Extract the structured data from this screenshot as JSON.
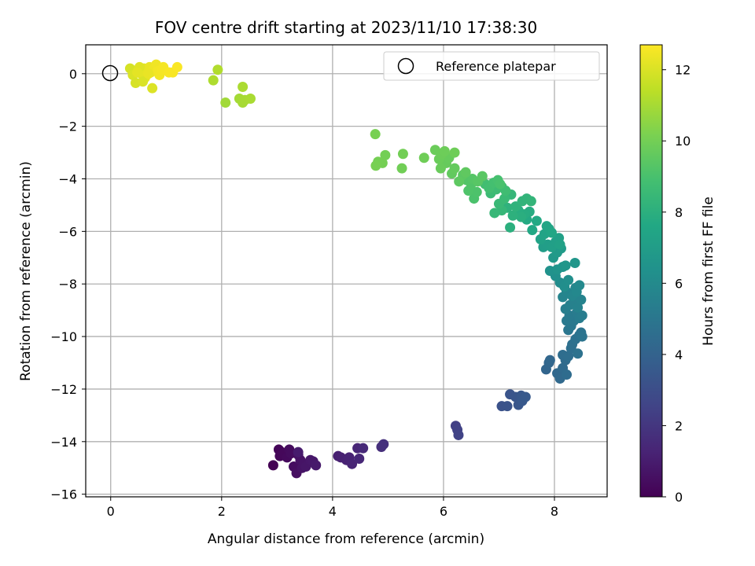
{
  "chart_data": {
    "type": "scatter",
    "title": "FOV centre drift starting at 2023/11/10 17:38:30",
    "xlabel": "Angular distance from reference (arcmin)",
    "ylabel": "Rotation from reference (arcmin)",
    "colorbar_label": "Hours from first FF file",
    "xlim": [
      -0.45,
      8.95
    ],
    "ylim": [
      -16.1,
      1.1
    ],
    "xticks": [
      0,
      2,
      4,
      6,
      8
    ],
    "xtick_labels": [
      "0",
      "2",
      "4",
      "6",
      "8"
    ],
    "yticks": [
      0,
      -2,
      -4,
      -6,
      -8,
      -10,
      -12,
      -14,
      -16
    ],
    "ytick_labels": [
      "0",
      "−2",
      "−4",
      "−6",
      "−8",
      "−10",
      "−12",
      "−14",
      "−16"
    ],
    "colorbar_range": [
      0,
      12.7
    ],
    "colorbar_ticks": [
      0,
      2,
      4,
      6,
      8,
      10,
      12
    ],
    "colorbar_tick_labels": [
      "0",
      "2",
      "4",
      "6",
      "8",
      "10",
      "12"
    ],
    "colormap": "viridis",
    "grid": true,
    "legend": {
      "position": "top-right",
      "entries": [
        "Reference platepar"
      ]
    },
    "reference_point": {
      "x": 0,
      "y": 0,
      "label": "Reference platepar"
    },
    "points": [
      {
        "x": 2.93,
        "y": -14.9,
        "t": 0.0
      },
      {
        "x": 3.03,
        "y": -14.3,
        "t": 0.1
      },
      {
        "x": 3.08,
        "y": -14.4,
        "t": 0.15
      },
      {
        "x": 3.05,
        "y": -14.55,
        "t": 0.2
      },
      {
        "x": 3.12,
        "y": -14.45,
        "t": 0.25
      },
      {
        "x": 3.18,
        "y": -14.6,
        "t": 0.3
      },
      {
        "x": 3.22,
        "y": -14.3,
        "t": 0.35
      },
      {
        "x": 3.25,
        "y": -14.45,
        "t": 0.4
      },
      {
        "x": 3.3,
        "y": -14.95,
        "t": 0.45
      },
      {
        "x": 3.35,
        "y": -15.2,
        "t": 0.5
      },
      {
        "x": 3.38,
        "y": -14.5,
        "t": 0.55
      },
      {
        "x": 3.42,
        "y": -14.7,
        "t": 0.6
      },
      {
        "x": 3.45,
        "y": -15.0,
        "t": 0.65
      },
      {
        "x": 3.48,
        "y": -14.85,
        "t": 0.7
      },
      {
        "x": 3.52,
        "y": -14.95,
        "t": 0.75
      },
      {
        "x": 3.6,
        "y": -14.7,
        "t": 0.8
      },
      {
        "x": 3.65,
        "y": -14.75,
        "t": 0.85
      },
      {
        "x": 3.7,
        "y": -14.9,
        "t": 0.9
      },
      {
        "x": 3.38,
        "y": -14.4,
        "t": 0.95
      },
      {
        "x": 4.1,
        "y": -14.55,
        "t": 1.1
      },
      {
        "x": 4.15,
        "y": -14.6,
        "t": 1.15
      },
      {
        "x": 4.25,
        "y": -14.7,
        "t": 1.2
      },
      {
        "x": 4.3,
        "y": -14.6,
        "t": 1.25
      },
      {
        "x": 4.35,
        "y": -14.85,
        "t": 1.3
      },
      {
        "x": 4.45,
        "y": -14.25,
        "t": 1.35
      },
      {
        "x": 4.48,
        "y": -14.65,
        "t": 1.4
      },
      {
        "x": 4.55,
        "y": -14.25,
        "t": 1.45
      },
      {
        "x": 4.88,
        "y": -14.2,
        "t": 1.7
      },
      {
        "x": 4.92,
        "y": -14.1,
        "t": 1.75
      },
      {
        "x": 6.22,
        "y": -13.4,
        "t": 2.4
      },
      {
        "x": 6.25,
        "y": -13.55,
        "t": 2.45
      },
      {
        "x": 6.27,
        "y": -13.75,
        "t": 2.5
      },
      {
        "x": 7.05,
        "y": -12.65,
        "t": 3.2
      },
      {
        "x": 7.15,
        "y": -12.65,
        "t": 3.25
      },
      {
        "x": 7.2,
        "y": -12.2,
        "t": 3.3
      },
      {
        "x": 7.3,
        "y": -12.3,
        "t": 3.35
      },
      {
        "x": 7.35,
        "y": -12.6,
        "t": 3.4
      },
      {
        "x": 7.4,
        "y": -12.25,
        "t": 3.45
      },
      {
        "x": 7.42,
        "y": -12.45,
        "t": 3.5
      },
      {
        "x": 7.48,
        "y": -12.3,
        "t": 3.55
      },
      {
        "x": 7.85,
        "y": -11.25,
        "t": 4.1
      },
      {
        "x": 7.9,
        "y": -11.0,
        "t": 4.15
      },
      {
        "x": 7.92,
        "y": -10.9,
        "t": 4.2
      },
      {
        "x": 8.05,
        "y": -11.4,
        "t": 4.25
      },
      {
        "x": 8.1,
        "y": -11.6,
        "t": 4.3
      },
      {
        "x": 8.15,
        "y": -11.2,
        "t": 4.35
      },
      {
        "x": 8.2,
        "y": -10.9,
        "t": 4.4
      },
      {
        "x": 8.22,
        "y": -11.45,
        "t": 4.45
      },
      {
        "x": 8.15,
        "y": -10.7,
        "t": 4.5
      },
      {
        "x": 8.25,
        "y": -10.75,
        "t": 4.55
      },
      {
        "x": 8.3,
        "y": -10.45,
        "t": 4.6
      },
      {
        "x": 8.32,
        "y": -10.3,
        "t": 4.65
      },
      {
        "x": 8.38,
        "y": -10.1,
        "t": 4.7
      },
      {
        "x": 8.42,
        "y": -10.65,
        "t": 4.75
      },
      {
        "x": 8.45,
        "y": -9.95,
        "t": 4.8
      },
      {
        "x": 8.48,
        "y": -9.85,
        "t": 4.85
      },
      {
        "x": 8.5,
        "y": -10.0,
        "t": 4.9
      },
      {
        "x": 8.25,
        "y": -9.75,
        "t": 5.0
      },
      {
        "x": 8.3,
        "y": -9.6,
        "t": 5.05
      },
      {
        "x": 8.35,
        "y": -9.4,
        "t": 5.1
      },
      {
        "x": 8.22,
        "y": -9.4,
        "t": 5.15
      },
      {
        "x": 8.27,
        "y": -9.2,
        "t": 5.2
      },
      {
        "x": 8.4,
        "y": -9.1,
        "t": 5.25
      },
      {
        "x": 8.45,
        "y": -9.3,
        "t": 5.3
      },
      {
        "x": 8.5,
        "y": -9.2,
        "t": 5.35
      },
      {
        "x": 8.2,
        "y": -8.95,
        "t": 5.4
      },
      {
        "x": 8.28,
        "y": -8.8,
        "t": 5.5
      },
      {
        "x": 8.35,
        "y": -8.7,
        "t": 5.55
      },
      {
        "x": 8.42,
        "y": -8.9,
        "t": 5.6
      },
      {
        "x": 8.48,
        "y": -8.6,
        "t": 5.65
      },
      {
        "x": 8.15,
        "y": -8.5,
        "t": 5.7
      },
      {
        "x": 8.22,
        "y": -8.3,
        "t": 5.75
      },
      {
        "x": 8.32,
        "y": -8.45,
        "t": 5.8
      },
      {
        "x": 8.38,
        "y": -8.15,
        "t": 5.85
      },
      {
        "x": 8.4,
        "y": -8.3,
        "t": 5.9
      },
      {
        "x": 8.45,
        "y": -8.05,
        "t": 5.95
      },
      {
        "x": 8.1,
        "y": -7.95,
        "t": 6.1
      },
      {
        "x": 8.18,
        "y": -8.1,
        "t": 6.2
      },
      {
        "x": 8.25,
        "y": -7.85,
        "t": 6.25
      },
      {
        "x": 8.02,
        "y": -7.7,
        "t": 6.3
      },
      {
        "x": 7.92,
        "y": -7.5,
        "t": 6.4
      },
      {
        "x": 8.05,
        "y": -7.45,
        "t": 6.5
      },
      {
        "x": 8.15,
        "y": -7.35,
        "t": 6.55
      },
      {
        "x": 8.2,
        "y": -7.3,
        "t": 6.6
      },
      {
        "x": 8.37,
        "y": -7.2,
        "t": 6.65
      },
      {
        "x": 7.98,
        "y": -7.0,
        "t": 6.75
      },
      {
        "x": 8.05,
        "y": -6.8,
        "t": 6.85
      },
      {
        "x": 8.12,
        "y": -6.65,
        "t": 6.9
      },
      {
        "x": 7.8,
        "y": -6.6,
        "t": 7.0
      },
      {
        "x": 7.88,
        "y": -6.5,
        "t": 7.05
      },
      {
        "x": 7.95,
        "y": -6.6,
        "t": 7.1
      },
      {
        "x": 8.02,
        "y": -6.4,
        "t": 7.15
      },
      {
        "x": 8.08,
        "y": -6.25,
        "t": 7.2
      },
      {
        "x": 8.1,
        "y": -6.5,
        "t": 7.25
      },
      {
        "x": 7.75,
        "y": -6.3,
        "t": 7.3
      },
      {
        "x": 7.82,
        "y": -6.1,
        "t": 7.35
      },
      {
        "x": 7.9,
        "y": -5.9,
        "t": 7.4
      },
      {
        "x": 7.86,
        "y": -5.8,
        "t": 7.45
      },
      {
        "x": 7.95,
        "y": -6.05,
        "t": 7.5
      },
      {
        "x": 7.6,
        "y": -5.95,
        "t": 7.6
      },
      {
        "x": 7.68,
        "y": -5.6,
        "t": 7.65
      },
      {
        "x": 7.5,
        "y": -5.55,
        "t": 7.7
      },
      {
        "x": 7.55,
        "y": -5.25,
        "t": 7.8
      },
      {
        "x": 7.45,
        "y": -5.35,
        "t": 7.85
      },
      {
        "x": 7.35,
        "y": -5.2,
        "t": 7.9
      },
      {
        "x": 7.4,
        "y": -5.45,
        "t": 7.95
      },
      {
        "x": 7.2,
        "y": -5.85,
        "t": 8.0
      },
      {
        "x": 7.25,
        "y": -5.4,
        "t": 8.05
      },
      {
        "x": 7.15,
        "y": -5.1,
        "t": 8.1
      },
      {
        "x": 7.3,
        "y": -5.05,
        "t": 8.15
      },
      {
        "x": 7.42,
        "y": -4.85,
        "t": 8.2
      },
      {
        "x": 7.5,
        "y": -4.75,
        "t": 8.25
      },
      {
        "x": 7.58,
        "y": -4.85,
        "t": 8.3
      },
      {
        "x": 7.22,
        "y": -4.6,
        "t": 8.35
      },
      {
        "x": 7.05,
        "y": -5.2,
        "t": 8.4
      },
      {
        "x": 6.92,
        "y": -5.3,
        "t": 8.45
      },
      {
        "x": 7.0,
        "y": -4.95,
        "t": 8.5
      },
      {
        "x": 7.1,
        "y": -4.75,
        "t": 8.55
      },
      {
        "x": 6.85,
        "y": -4.55,
        "t": 8.6
      },
      {
        "x": 6.95,
        "y": -4.4,
        "t": 8.65
      },
      {
        "x": 7.05,
        "y": -4.3,
        "t": 8.7
      },
      {
        "x": 7.12,
        "y": -4.45,
        "t": 8.75
      },
      {
        "x": 6.75,
        "y": -4.2,
        "t": 8.8
      },
      {
        "x": 6.82,
        "y": -4.35,
        "t": 8.85
      },
      {
        "x": 6.9,
        "y": -4.15,
        "t": 8.9
      },
      {
        "x": 6.98,
        "y": -4.05,
        "t": 8.95
      },
      {
        "x": 7.02,
        "y": -4.2,
        "t": 9.0
      },
      {
        "x": 6.55,
        "y": -4.75,
        "t": 9.05
      },
      {
        "x": 6.6,
        "y": -4.5,
        "t": 9.1
      },
      {
        "x": 6.45,
        "y": -4.45,
        "t": 9.15
      },
      {
        "x": 6.5,
        "y": -4.2,
        "t": 9.2
      },
      {
        "x": 6.42,
        "y": -4.05,
        "t": 9.25
      },
      {
        "x": 6.52,
        "y": -4.0,
        "t": 9.3
      },
      {
        "x": 6.62,
        "y": -4.1,
        "t": 9.35
      },
      {
        "x": 6.7,
        "y": -3.9,
        "t": 9.4
      },
      {
        "x": 6.35,
        "y": -3.85,
        "t": 9.45
      },
      {
        "x": 6.28,
        "y": -4.1,
        "t": 9.5
      },
      {
        "x": 6.4,
        "y": -3.75,
        "t": 9.55
      },
      {
        "x": 6.15,
        "y": -3.8,
        "t": 9.6
      },
      {
        "x": 6.2,
        "y": -3.6,
        "t": 9.65
      },
      {
        "x": 6.05,
        "y": -3.4,
        "t": 9.7
      },
      {
        "x": 6.1,
        "y": -3.2,
        "t": 9.72
      },
      {
        "x": 5.95,
        "y": -3.6,
        "t": 9.75
      },
      {
        "x": 5.92,
        "y": -3.25,
        "t": 9.78
      },
      {
        "x": 5.85,
        "y": -2.9,
        "t": 9.8
      },
      {
        "x": 5.97,
        "y": -3.05,
        "t": 9.82
      },
      {
        "x": 6.02,
        "y": -2.95,
        "t": 9.85
      },
      {
        "x": 6.2,
        "y": -3.0,
        "t": 9.88
      },
      {
        "x": 5.65,
        "y": -3.2,
        "t": 9.9
      },
      {
        "x": 5.25,
        "y": -3.6,
        "t": 9.95
      },
      {
        "x": 5.27,
        "y": -3.05,
        "t": 9.98
      },
      {
        "x": 4.95,
        "y": -3.1,
        "t": 10.0
      },
      {
        "x": 4.9,
        "y": -3.4,
        "t": 10.02
      },
      {
        "x": 4.82,
        "y": -3.35,
        "t": 10.05
      },
      {
        "x": 4.78,
        "y": -3.5,
        "t": 10.08
      },
      {
        "x": 4.77,
        "y": -2.3,
        "t": 10.1
      },
      {
        "x": 2.07,
        "y": -1.1,
        "t": 10.9
      },
      {
        "x": 2.32,
        "y": -0.95,
        "t": 10.95
      },
      {
        "x": 2.38,
        "y": -1.1,
        "t": 11.0
      },
      {
        "x": 2.42,
        "y": -1.0,
        "t": 11.02
      },
      {
        "x": 2.52,
        "y": -0.95,
        "t": 11.05
      },
      {
        "x": 2.38,
        "y": -0.5,
        "t": 11.08
      },
      {
        "x": 1.85,
        "y": -0.25,
        "t": 11.15
      },
      {
        "x": 1.93,
        "y": 0.15,
        "t": 11.2
      },
      {
        "x": 0.35,
        "y": 0.2,
        "t": 11.9
      },
      {
        "x": 0.4,
        "y": -0.05,
        "t": 12.0
      },
      {
        "x": 0.45,
        "y": -0.35,
        "t": 11.95
      },
      {
        "x": 0.5,
        "y": 0.15,
        "t": 12.05
      },
      {
        "x": 0.55,
        "y": 0.0,
        "t": 12.1
      },
      {
        "x": 0.6,
        "y": 0.2,
        "t": 12.15
      },
      {
        "x": 0.62,
        "y": -0.15,
        "t": 12.2
      },
      {
        "x": 0.65,
        "y": 0.1,
        "t": 12.25
      },
      {
        "x": 0.7,
        "y": 0.25,
        "t": 12.3
      },
      {
        "x": 0.72,
        "y": 0.05,
        "t": 12.35
      },
      {
        "x": 0.75,
        "y": -0.55,
        "t": 12.05
      },
      {
        "x": 0.78,
        "y": 0.2,
        "t": 12.4
      },
      {
        "x": 0.82,
        "y": 0.35,
        "t": 12.45
      },
      {
        "x": 0.85,
        "y": 0.1,
        "t": 12.5
      },
      {
        "x": 0.88,
        "y": -0.05,
        "t": 12.5
      },
      {
        "x": 0.92,
        "y": 0.15,
        "t": 12.55
      },
      {
        "x": 0.95,
        "y": 0.25,
        "t": 12.55
      },
      {
        "x": 1.05,
        "y": 0.05,
        "t": 12.6
      },
      {
        "x": 1.12,
        "y": 0.05,
        "t": 12.6
      },
      {
        "x": 1.2,
        "y": 0.25,
        "t": 12.65
      },
      {
        "x": 0.52,
        "y": 0.25,
        "t": 12.1
      },
      {
        "x": 0.58,
        "y": -0.3,
        "t": 12.0
      },
      {
        "x": 0.68,
        "y": 0.0,
        "t": 12.3
      },
      {
        "x": 0.48,
        "y": 0.05,
        "t": 12.2
      }
    ]
  }
}
